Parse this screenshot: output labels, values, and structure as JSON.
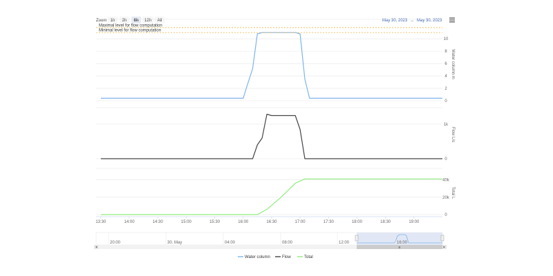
{
  "range_selector": {
    "zoom_label": "Zoom",
    "buttons": [
      "1h",
      "2h",
      "6h",
      "12h",
      "All"
    ],
    "selected": "6h",
    "from_date": "May 30, 2023",
    "separator": "→",
    "to_date": "May 30, 2023"
  },
  "menu_icon": "hamburger-menu-icon",
  "plot_lines": [
    {
      "label": "Maximal level for flow computation",
      "value": 11.8,
      "color": "#f5a623"
    },
    {
      "label": "Minimal level for flow computation",
      "value": 11.0,
      "color": "#f5a623"
    }
  ],
  "navigator": {
    "tick_labels": [
      "20:00",
      "30. May",
      "04:00",
      "08:00",
      "12:00",
      "16:00"
    ],
    "scrollbar_grip": "≡"
  },
  "legend": [
    {
      "name": "Water column",
      "color": "#7cb5ec"
    },
    {
      "name": "Flow",
      "color": "#434348"
    },
    {
      "name": "Total",
      "color": "#90ed7d"
    }
  ],
  "chart_data": [
    {
      "type": "line",
      "ylabel": "Water column m",
      "ylim": [
        0,
        11.8
      ],
      "yticks": [
        "0",
        "2",
        "4",
        "6",
        "8",
        "10"
      ],
      "ytick_values": [
        0,
        2,
        4,
        6,
        8,
        10
      ],
      "series": [
        {
          "name": "Water column",
          "color": "#7cb5ec",
          "x": [
            "13:30",
            "15:55",
            "16:00",
            "16:05",
            "16:10",
            "16:15",
            "16:20",
            "16:25",
            "16:30",
            "16:55",
            "17:00",
            "17:05",
            "17:10",
            "19:30"
          ],
          "y": [
            0.4,
            0.4,
            0.4,
            2.8,
            5.2,
            10.8,
            11.0,
            11.0,
            11.0,
            11.0,
            10.8,
            3.5,
            0.4,
            0.4
          ]
        }
      ]
    },
    {
      "type": "line",
      "ylabel": "Flow L/s",
      "ylim": [
        0,
        1400
      ],
      "yticks": [
        "0",
        "1k"
      ],
      "ytick_values": [
        0,
        1000
      ],
      "series": [
        {
          "name": "Flow",
          "color": "#434348",
          "x": [
            "13:30",
            "16:05",
            "16:10",
            "16:15",
            "16:20",
            "16:25",
            "16:30",
            "16:55",
            "17:00",
            "17:05",
            "17:10",
            "19:30"
          ],
          "y": [
            0,
            0,
            0,
            400,
            600,
            1290,
            1250,
            1250,
            850,
            0,
            0,
            0
          ]
        }
      ]
    },
    {
      "type": "line",
      "ylabel": "Total L",
      "ylim": [
        0,
        50000
      ],
      "yticks": [
        "0",
        "20k",
        "40k"
      ],
      "ytick_values": [
        0,
        20000,
        40000
      ],
      "series": [
        {
          "name": "Total",
          "color": "#90ed7d",
          "x": [
            "13:30",
            "16:15",
            "16:25",
            "16:40",
            "16:55",
            "17:05",
            "19:30"
          ],
          "y": [
            0,
            0,
            6000,
            20000,
            36000,
            41000,
            41000
          ]
        }
      ]
    }
  ],
  "x_axis": {
    "tick_labels": [
      "13:30",
      "14:00",
      "14:30",
      "15:00",
      "15:30",
      "16:00",
      "16:30",
      "17:00",
      "17:30",
      "18:00",
      "18:30",
      "19:00"
    ]
  }
}
